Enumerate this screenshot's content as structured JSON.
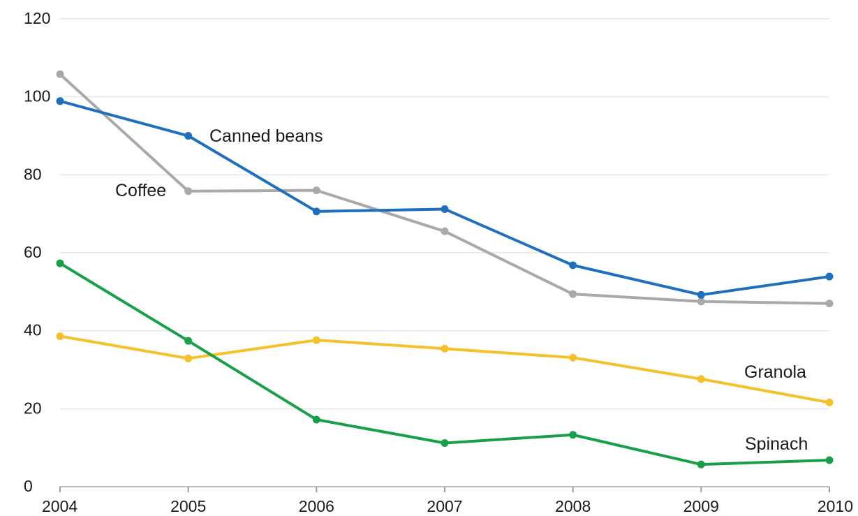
{
  "chart_data": {
    "type": "line",
    "x": [
      2004,
      2005,
      2006,
      2007,
      2008,
      2009,
      2010
    ],
    "ylim": [
      0,
      120
    ],
    "yticks": [
      0,
      20,
      40,
      60,
      80,
      100,
      120
    ],
    "grid": true,
    "legend": "inline labels",
    "series": [
      {
        "name": "Coffee",
        "color": "#a9a9a9",
        "values": [
          105.8,
          75.8,
          76.0,
          65.5,
          49.4,
          47.5,
          47.0
        ]
      },
      {
        "name": "Canned beans",
        "color": "#1f6fbf",
        "values": [
          98.9,
          90.0,
          70.6,
          71.2,
          56.8,
          49.2,
          53.9
        ]
      },
      {
        "name": "Granola",
        "color": "#f5c02a",
        "values": [
          38.6,
          32.9,
          37.6,
          35.4,
          33.1,
          27.6,
          21.6
        ]
      },
      {
        "name": "Spinach",
        "color": "#18a049",
        "values": [
          57.3,
          37.4,
          17.2,
          11.2,
          13.3,
          5.7,
          6.8
        ]
      }
    ]
  }
}
